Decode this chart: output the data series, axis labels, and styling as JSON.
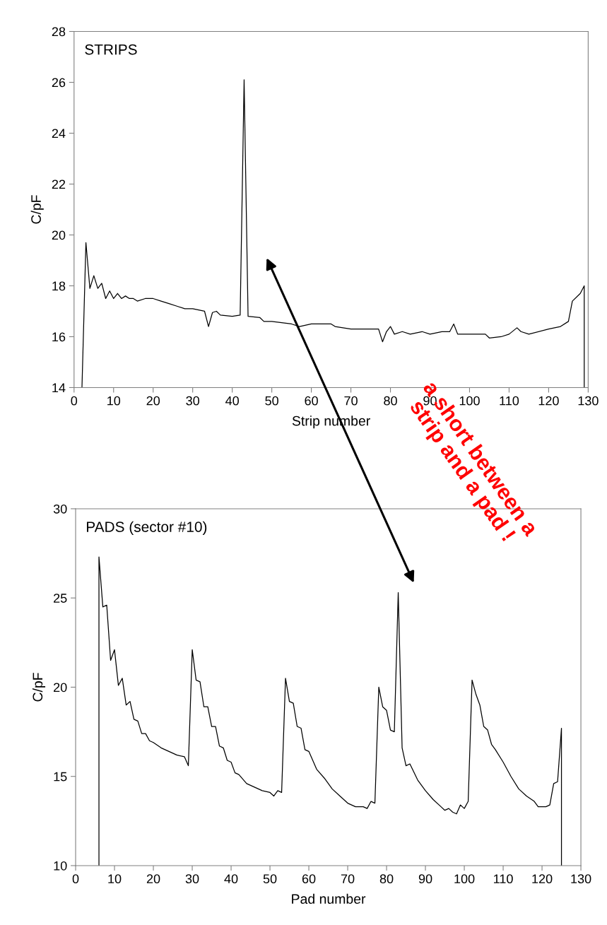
{
  "chart_data": [
    {
      "type": "line",
      "title": "STRIPS",
      "xlabel": "Strip number",
      "ylabel": "C/pF",
      "xlim": [
        0,
        130
      ],
      "ylim": [
        14,
        28
      ],
      "xticks": [
        0,
        10,
        20,
        30,
        40,
        50,
        60,
        70,
        80,
        90,
        100,
        110,
        120,
        130
      ],
      "yticks": [
        14,
        16,
        18,
        20,
        22,
        24,
        26,
        28
      ],
      "grid": false,
      "legend": false,
      "marker": "none",
      "line_style": "solid",
      "series": [
        {
          "color": "#000000",
          "x": [
            2,
            3,
            4,
            5,
            6,
            7,
            8,
            9,
            10,
            11,
            12,
            13,
            14,
            15,
            16,
            18,
            20,
            22,
            24,
            26,
            28,
            30,
            33,
            34,
            35,
            36,
            37,
            40,
            42,
            43,
            44,
            47,
            48,
            50,
            55,
            57,
            60,
            65,
            66,
            70,
            75,
            77,
            78,
            79,
            80,
            81,
            83,
            85,
            88,
            90,
            93,
            95,
            96,
            97,
            100,
            104,
            105,
            108,
            110,
            112,
            113,
            115,
            120,
            123,
            125,
            126,
            128,
            129,
            129
          ],
          "values": [
            14,
            19.7,
            17.9,
            18.4,
            17.9,
            18.1,
            17.5,
            17.8,
            17.5,
            17.7,
            17.5,
            17.6,
            17.5,
            17.5,
            17.4,
            17.5,
            17.5,
            17.4,
            17.3,
            17.2,
            17.1,
            17.1,
            17.0,
            16.4,
            16.95,
            17.0,
            16.85,
            16.8,
            16.85,
            26.1,
            16.8,
            16.75,
            16.6,
            16.6,
            16.5,
            16.4,
            16.5,
            16.5,
            16.4,
            16.3,
            16.3,
            16.3,
            15.8,
            16.2,
            16.4,
            16.1,
            16.2,
            16.1,
            16.2,
            16.1,
            16.2,
            16.2,
            16.5,
            16.1,
            16.1,
            16.1,
            15.95,
            16.0,
            16.1,
            16.35,
            16.2,
            16.1,
            16.3,
            16.4,
            16.6,
            17.4,
            17.7,
            18.0,
            14
          ]
        }
      ]
    },
    {
      "type": "line",
      "title": "PADS (sector #10)",
      "xlabel": "Pad number",
      "ylabel": "C/pF",
      "xlim": [
        0,
        130
      ],
      "ylim": [
        10,
        30
      ],
      "xticks": [
        0,
        10,
        20,
        30,
        40,
        50,
        60,
        70,
        80,
        90,
        100,
        110,
        120,
        130
      ],
      "yticks": [
        10,
        15,
        20,
        25,
        30
      ],
      "grid": false,
      "legend": false,
      "marker": "none",
      "line_style": "solid",
      "annotations": [
        "a short between a\nstrip and a pad !"
      ],
      "series": [
        {
          "color": "#000000",
          "x": [
            6,
            6,
            7,
            8,
            9,
            10,
            11,
            12,
            13,
            14,
            15,
            16,
            17,
            18,
            19,
            20,
            22,
            24,
            26,
            28,
            29,
            30,
            31,
            32,
            33,
            34,
            35,
            36,
            37,
            38,
            39,
            40,
            41,
            42,
            44,
            46,
            48,
            50,
            51,
            52,
            53,
            54,
            55,
            56,
            57,
            58,
            59,
            60,
            62,
            64,
            66,
            68,
            70,
            72,
            74,
            75,
            76,
            77,
            78,
            79,
            80,
            81,
            82,
            83,
            84,
            85,
            86,
            88,
            90,
            92,
            94,
            95,
            96,
            97,
            98,
            99,
            100,
            101,
            102,
            103,
            104,
            105,
            106,
            107,
            108,
            110,
            112,
            114,
            116,
            118,
            119,
            121,
            122,
            123,
            124,
            125,
            125
          ],
          "values": [
            10,
            27.3,
            24.5,
            24.6,
            21.5,
            22.1,
            20.1,
            20.5,
            19.0,
            19.2,
            18.2,
            18.1,
            17.4,
            17.4,
            17.0,
            16.9,
            16.6,
            16.4,
            16.2,
            16.1,
            15.6,
            22.1,
            20.4,
            20.3,
            18.9,
            18.9,
            17.8,
            17.8,
            16.7,
            16.6,
            15.9,
            15.8,
            15.2,
            15.1,
            14.6,
            14.4,
            14.2,
            14.1,
            13.9,
            14.2,
            14.1,
            20.5,
            19.2,
            19.1,
            17.8,
            17.7,
            16.5,
            16.4,
            15.4,
            14.9,
            14.3,
            13.9,
            13.5,
            13.3,
            13.3,
            13.2,
            13.6,
            13.5,
            20.0,
            18.9,
            18.7,
            17.6,
            17.5,
            25.3,
            16.6,
            15.6,
            15.7,
            14.8,
            14.2,
            13.7,
            13.3,
            13.1,
            13.2,
            13.0,
            12.9,
            13.4,
            13.2,
            13.6,
            20.4,
            19.6,
            19.0,
            17.8,
            17.6,
            16.8,
            16.5,
            15.8,
            15.0,
            14.3,
            13.9,
            13.6,
            13.3,
            13.3,
            13.4,
            14.6,
            14.7,
            17.7,
            10
          ]
        }
      ]
    }
  ]
}
